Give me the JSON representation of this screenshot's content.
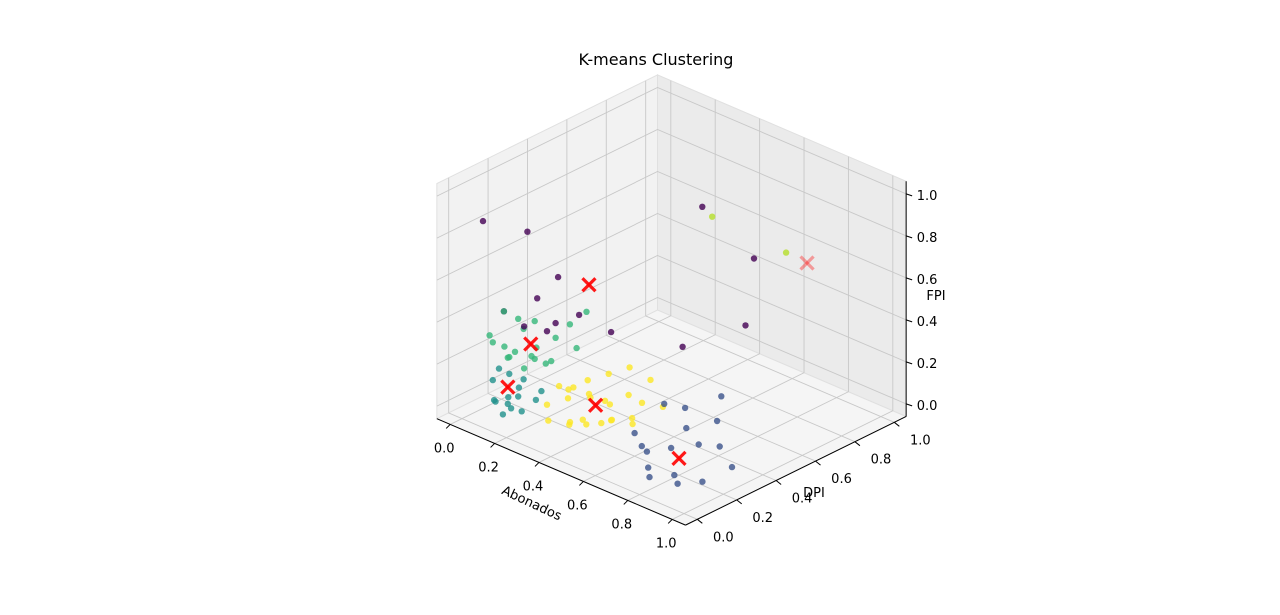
{
  "chart_data": {
    "type": "scatter",
    "title": "K-means Clustering",
    "xlabel": "Abonados",
    "ylabel": "DPI",
    "zlabel": "FPI",
    "projection": "3d",
    "grid": true,
    "xlim": [
      0,
      1
    ],
    "ylim": [
      0,
      1
    ],
    "zlim": [
      0,
      1
    ],
    "x_ticks": [
      "0.0",
      "0.2",
      "0.4",
      "0.6",
      "0.8",
      "1.0"
    ],
    "y_ticks": [
      "0.0",
      "0.2",
      "0.4",
      "0.6",
      "0.8",
      "1.0"
    ],
    "z_ticks": [
      "0.0",
      "0.2",
      "0.4",
      "0.6",
      "0.8",
      "1.0"
    ],
    "series": [
      {
        "color": "#440154",
        "points": [
          [
            0.05,
            0.05,
            0.88
          ],
          [
            0.25,
            0.05,
            0.92
          ],
          [
            0.55,
            0.6,
            0.92
          ],
          [
            0.3,
            0.15,
            0.68
          ],
          [
            0.25,
            0.1,
            0.58
          ],
          [
            0.35,
            0.2,
            0.5
          ],
          [
            0.1,
            0.1,
            0.45
          ],
          [
            0.2,
            0.25,
            0.37
          ],
          [
            0.45,
            0.25,
            0.44
          ],
          [
            0.25,
            0.15,
            0.4
          ],
          [
            0.65,
            0.75,
            0.65
          ],
          [
            0.55,
            0.5,
            0.3
          ],
          [
            0.12,
            0.18,
            0.35
          ],
          [
            0.7,
            0.65,
            0.4
          ]
        ]
      },
      {
        "color": "#3b528b",
        "points": [
          [
            0.65,
            0.18,
            0.02
          ],
          [
            0.6,
            0.2,
            0.05
          ],
          [
            0.7,
            0.15,
            0.03
          ],
          [
            0.75,
            0.1,
            0.0
          ],
          [
            0.8,
            0.05,
            0.0
          ],
          [
            0.72,
            0.25,
            0.01
          ],
          [
            0.85,
            0.12,
            0.0
          ],
          [
            0.9,
            0.08,
            0.0
          ],
          [
            0.95,
            0.15,
            0.0
          ],
          [
            0.7,
            0.35,
            0.05
          ],
          [
            0.8,
            0.3,
            0.04
          ],
          [
            0.85,
            0.35,
            0.03
          ],
          [
            0.75,
            0.45,
            0.06
          ],
          [
            0.65,
            0.4,
            0.1
          ],
          [
            0.6,
            0.35,
            0.12
          ],
          [
            0.68,
            0.55,
            0.1
          ],
          [
            0.95,
            0.3,
            0.0
          ]
        ]
      },
      {
        "color": "#21918c",
        "points": [
          [
            0.05,
            0.1,
            0.1
          ],
          [
            0.08,
            0.15,
            0.12
          ],
          [
            0.1,
            0.2,
            0.08
          ],
          [
            0.12,
            0.1,
            0.05
          ],
          [
            0.15,
            0.12,
            0.1
          ],
          [
            0.1,
            0.05,
            0.05
          ],
          [
            0.08,
            0.08,
            0.02
          ],
          [
            0.12,
            0.15,
            0.03
          ],
          [
            0.15,
            0.08,
            0.02
          ],
          [
            0.18,
            0.1,
            0.01
          ],
          [
            0.2,
            0.15,
            0.05
          ],
          [
            0.06,
            0.12,
            0.15
          ],
          [
            0.18,
            0.2,
            0.06
          ],
          [
            0.14,
            0.05,
            0.0
          ],
          [
            0.1,
            0.12,
            0.0
          ]
        ]
      },
      {
        "color": "#35b779",
        "points": [
          [
            0.1,
            0.1,
            0.45
          ],
          [
            0.12,
            0.15,
            0.4
          ],
          [
            0.15,
            0.2,
            0.38
          ],
          [
            0.08,
            0.05,
            0.35
          ],
          [
            0.1,
            0.2,
            0.32
          ],
          [
            0.12,
            0.08,
            0.3
          ],
          [
            0.15,
            0.1,
            0.28
          ],
          [
            0.18,
            0.15,
            0.25
          ],
          [
            0.2,
            0.25,
            0.3
          ],
          [
            0.22,
            0.3,
            0.35
          ],
          [
            0.05,
            0.1,
            0.28
          ],
          [
            0.1,
            0.12,
            0.22
          ],
          [
            0.15,
            0.2,
            0.2
          ],
          [
            0.18,
            0.25,
            0.18
          ],
          [
            0.12,
            0.18,
            0.15
          ],
          [
            0.2,
            0.2,
            0.2
          ],
          [
            0.25,
            0.3,
            0.25
          ],
          [
            0.25,
            0.35,
            0.4
          ],
          [
            0.08,
            0.15,
            0.2
          ],
          [
            0.14,
            0.22,
            0.24
          ]
        ]
      },
      {
        "color": "#b5de2b",
        "points": [
          [
            0.55,
            0.65,
            0.85
          ],
          [
            0.75,
            0.8,
            0.7
          ]
        ]
      },
      {
        "color": "#fde725",
        "points": [
          [
            0.25,
            0.15,
            0.05
          ],
          [
            0.3,
            0.2,
            0.08
          ],
          [
            0.35,
            0.25,
            0.1
          ],
          [
            0.4,
            0.3,
            0.05
          ],
          [
            0.45,
            0.2,
            0.03
          ],
          [
            0.3,
            0.1,
            0.02
          ],
          [
            0.35,
            0.15,
            0.0
          ],
          [
            0.4,
            0.18,
            0.01
          ],
          [
            0.45,
            0.25,
            0.02
          ],
          [
            0.5,
            0.3,
            0.03
          ],
          [
            0.3,
            0.3,
            0.12
          ],
          [
            0.35,
            0.35,
            0.15
          ],
          [
            0.4,
            0.4,
            0.18
          ],
          [
            0.45,
            0.45,
            0.12
          ],
          [
            0.5,
            0.35,
            0.08
          ],
          [
            0.55,
            0.4,
            0.06
          ],
          [
            0.38,
            0.12,
            0.04
          ],
          [
            0.42,
            0.14,
            0.06
          ],
          [
            0.48,
            0.22,
            0.05
          ],
          [
            0.52,
            0.28,
            0.02
          ],
          [
            0.28,
            0.25,
            0.1
          ],
          [
            0.33,
            0.28,
            0.06
          ],
          [
            0.36,
            0.32,
            0.04
          ],
          [
            0.44,
            0.35,
            0.09
          ],
          [
            0.26,
            0.2,
            0.12
          ],
          [
            0.32,
            0.18,
            0.14
          ]
        ]
      }
    ],
    "centroids": {
      "color": "#ff0000",
      "marker": "x",
      "points": [
        [
          0.35,
          0.25,
          0.62
        ],
        [
          0.8,
          0.2,
          0.02
        ],
        [
          0.1,
          0.12,
          0.08
        ],
        [
          0.15,
          0.18,
          0.28
        ],
        [
          0.38,
          0.25,
          0.06
        ],
        [
          0.8,
          0.85,
          0.65
        ]
      ]
    }
  }
}
